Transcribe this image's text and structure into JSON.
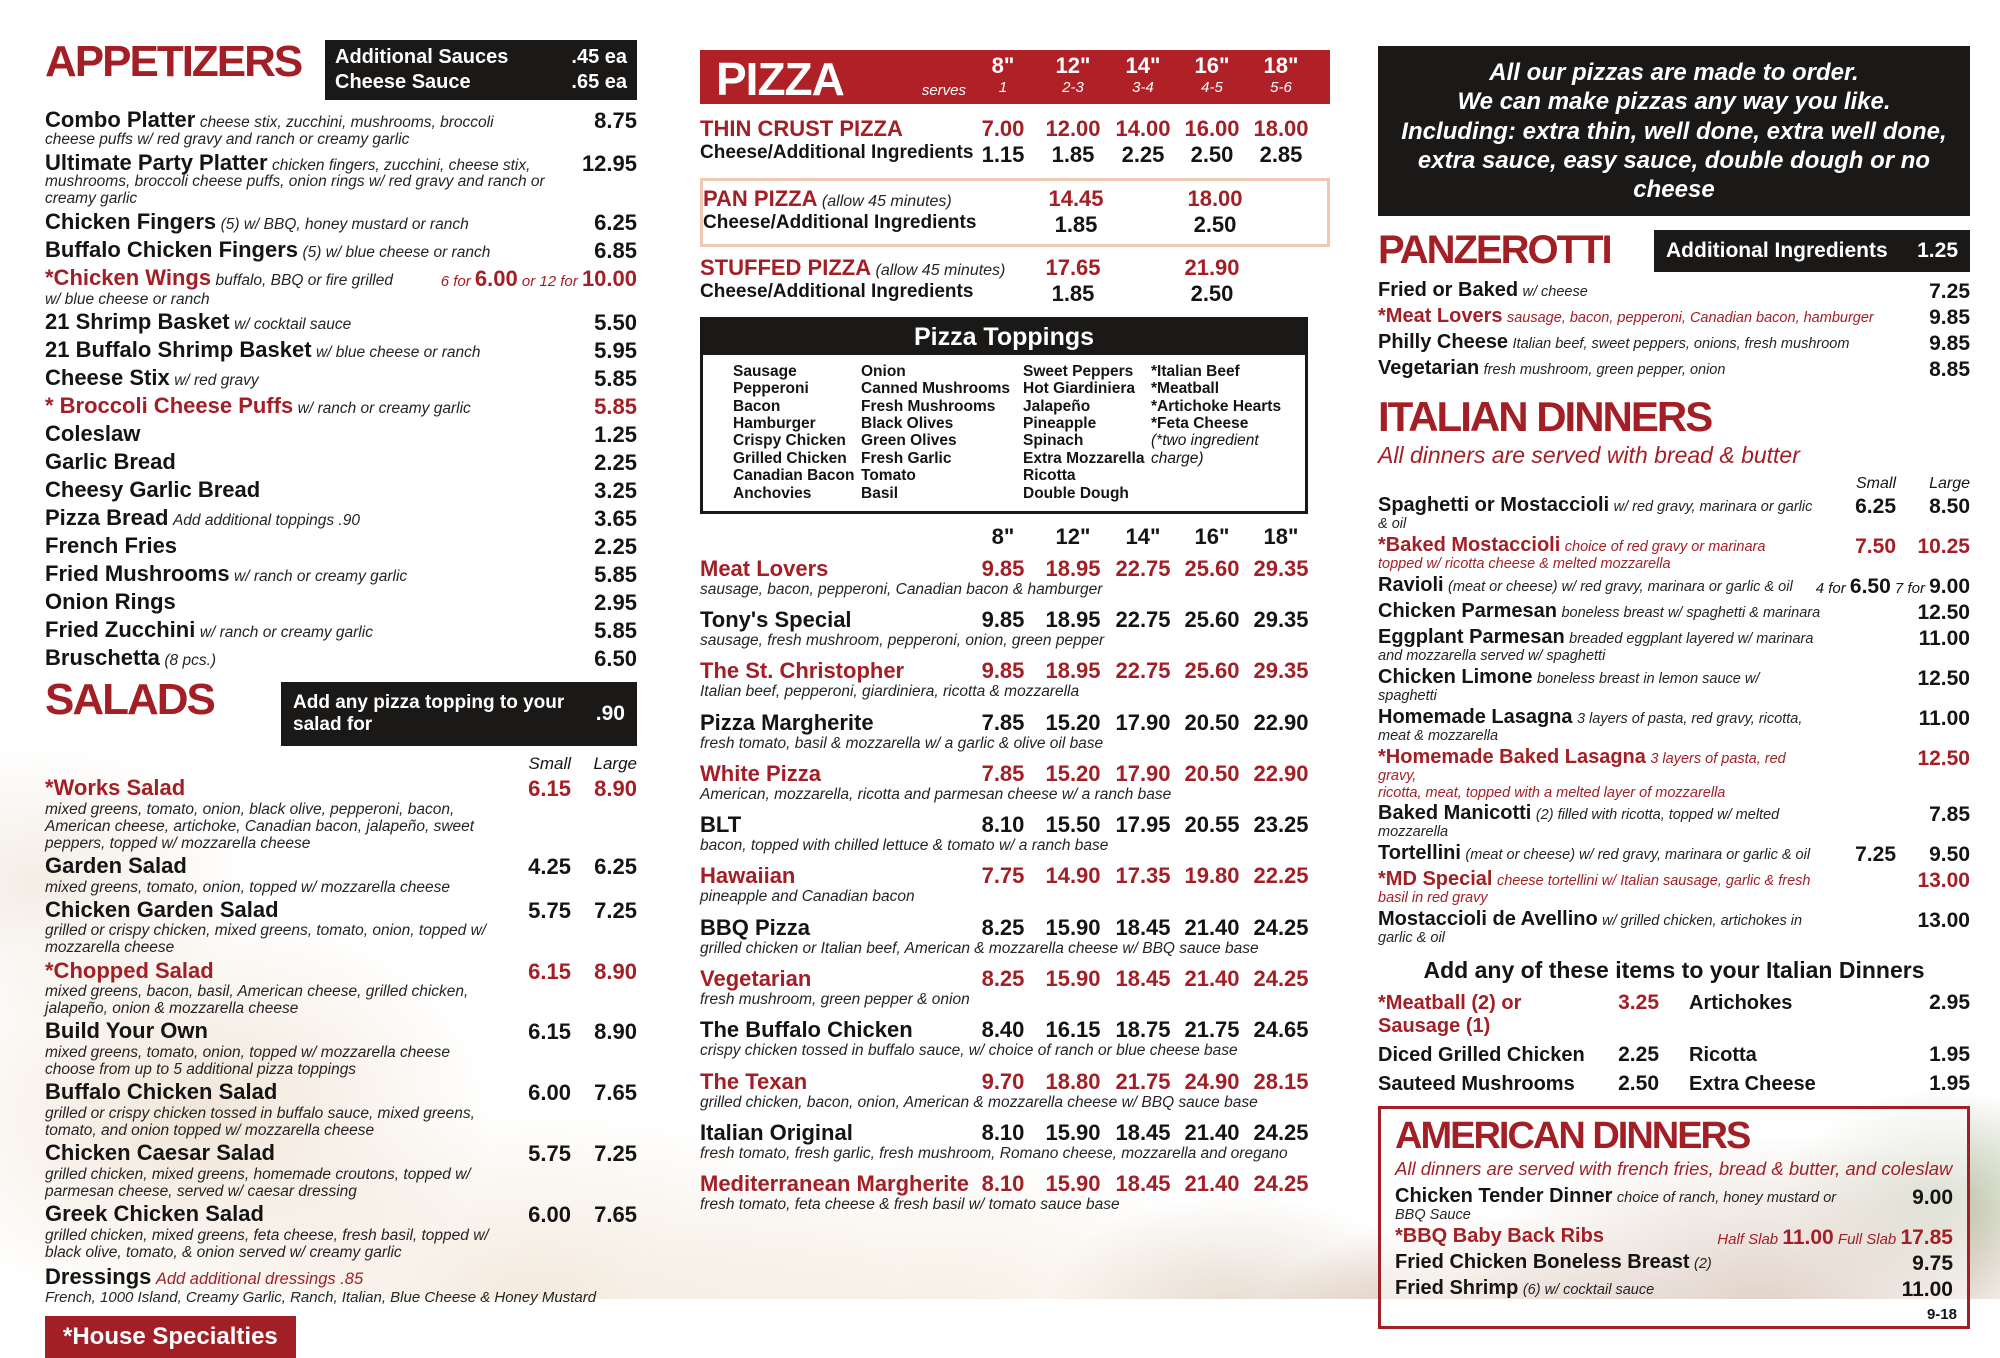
{
  "footnote": "9-18",
  "colors": {
    "red": "#a31f26",
    "banner_red": "#b02127",
    "box_black": "#1b1918",
    "pan_box_border": "#efc8b4"
  },
  "appetizers": {
    "title": "APPETIZERS",
    "side_box": [
      {
        "label": "Additional Sauces",
        "price": ".45 ea"
      },
      {
        "label": "Cheese Sauce",
        "price": ".65 ea"
      }
    ],
    "items": [
      {
        "name": "Combo Platter",
        "desc": "cheese stix, zucchini, mushrooms, broccoli cheese puffs w/ red gravy and ranch or creamy garlic",
        "price": "8.75"
      },
      {
        "name": "Ultimate Party Platter",
        "desc": "chicken fingers, zucchini, cheese stix, mushrooms, broccoli cheese puffs, onion rings w/ red gravy and ranch or creamy garlic",
        "price": "12.95"
      },
      {
        "name": "Chicken Fingers",
        "desc": "(5) w/ BBQ, honey mustard or ranch",
        "price": "6.25"
      },
      {
        "name": "Buffalo Chicken Fingers",
        "desc": "(5) w/ blue cheese or ranch",
        "price": "6.85"
      },
      {
        "name": "*Chicken Wings",
        "red": true,
        "desc": "buffalo, BBQ or fire grilled",
        "desc2": "w/ blue cheese or ranch",
        "price_parts": [
          {
            "t": "6 for ",
            "s": "smr"
          },
          {
            "t": "6.00",
            "s": "bigr"
          },
          {
            "t": " or 12 for ",
            "s": "smr"
          },
          {
            "t": "10.00",
            "s": "bigr"
          }
        ]
      },
      {
        "name": "21 Shrimp Basket",
        "desc": "w/ cocktail sauce",
        "price": "5.50"
      },
      {
        "name": "21 Buffalo Shrimp Basket",
        "desc": "w/ blue cheese or ranch",
        "price": "5.95"
      },
      {
        "name": "Cheese Stix",
        "desc": "w/ red gravy",
        "price": "5.85"
      },
      {
        "name": "* Broccoli Cheese Puffs",
        "red": true,
        "desc": "w/ ranch or creamy garlic",
        "price": "5.85",
        "price_red": true
      },
      {
        "name": "Coleslaw",
        "price": "1.25"
      },
      {
        "name": "Garlic Bread",
        "price": "2.25"
      },
      {
        "name": "Cheesy Garlic Bread",
        "price": "3.25"
      },
      {
        "name": "Pizza Bread",
        "desc": "Add additional toppings .90",
        "price": "3.65"
      },
      {
        "name": "French Fries",
        "price": "2.25"
      },
      {
        "name": "Fried Mushrooms",
        "desc": "w/ ranch or creamy garlic",
        "price": "5.85"
      },
      {
        "name": "Onion Rings",
        "price": "2.95"
      },
      {
        "name": "Fried Zucchini",
        "desc": "w/ ranch or creamy garlic",
        "price": "5.85"
      },
      {
        "name": "Bruschetta",
        "desc": "(8 pcs.)",
        "price": "6.50"
      }
    ]
  },
  "salads": {
    "title": "SALADS",
    "side_box": [
      {
        "label": "Add any pizza topping to your salad for",
        "price": ".90"
      }
    ],
    "col_headers": [
      "Small",
      "Large"
    ],
    "items": [
      {
        "name": "*Works Salad",
        "red": true,
        "desc": "mixed greens, tomato, onion, black olive, pepperoni, bacon, American cheese, artichoke, Canadian bacon, jalapeño, sweet peppers, topped w/ mozzarella cheese",
        "small": "6.15",
        "large": "8.90",
        "price_red": true
      },
      {
        "name": "Garden Salad",
        "desc": "mixed greens, tomato, onion, topped w/ mozzarella cheese",
        "small": "4.25",
        "large": "6.25"
      },
      {
        "name": "Chicken Garden Salad",
        "desc": "grilled or crispy chicken, mixed greens, tomato, onion, topped w/ mozzarella cheese",
        "small": "5.75",
        "large": "7.25"
      },
      {
        "name": "*Chopped Salad",
        "red": true,
        "desc": "mixed greens, bacon, basil, American cheese, grilled chicken, jalapeño, onion & mozzarella cheese",
        "small": "6.15",
        "large": "8.90",
        "price_red": true
      },
      {
        "name": "Build Your Own",
        "desc": "mixed greens, tomato, onion, topped w/ mozzarella cheese choose from up to 5 additional pizza toppings",
        "small": "6.15",
        "large": "8.90"
      },
      {
        "name": "Buffalo Chicken Salad",
        "desc": "grilled or crispy chicken tossed in buffalo sauce, mixed greens, tomato, and onion topped w/ mozzarella cheese",
        "small": "6.00",
        "large": "7.65"
      },
      {
        "name": "Chicken Caesar Salad",
        "desc": "grilled chicken, mixed greens, homemade croutons, topped w/ parmesan cheese, served w/ caesar dressing",
        "small": "5.75",
        "large": "7.25"
      },
      {
        "name": "Greek Chicken Salad",
        "desc": "grilled chicken, mixed greens, feta cheese, fresh basil, topped w/ black olive, tomato, & onion served w/ creamy garlic",
        "small": "6.00",
        "large": "7.65"
      }
    ],
    "dressings": {
      "name": "Dressings",
      "note": "Add additional dressings .85",
      "list": "French, 1000 Island, Creamy Garlic, Ranch, Italian, Blue Cheese & Honey Mustard"
    },
    "house_specialties": "*House Specialties"
  },
  "pizza": {
    "title": "PIZZA",
    "serves_label": "serves",
    "sizes": [
      "8\"",
      "12\"",
      "14\"",
      "16\"",
      "18\""
    ],
    "serves": [
      "1",
      "2-3",
      "3-4",
      "4-5",
      "5-6"
    ],
    "crusts": [
      {
        "name": "THIN CRUST PIZZA",
        "prices": [
          "7.00",
          "12.00",
          "14.00",
          "16.00",
          "18.00"
        ],
        "cheese_label": "Cheese/Additional Ingredients",
        "cheese_prices": [
          "1.15",
          "1.85",
          "2.25",
          "2.50",
          "2.85"
        ]
      },
      {
        "name": "PAN PIZZA",
        "note": "(allow 45 minutes)",
        "boxed": true,
        "prices": [
          "",
          "14.45",
          "",
          "18.00",
          ""
        ],
        "cheese_label": "Cheese/Additional Ingredients",
        "cheese_prices": [
          "",
          "1.85",
          "",
          "2.50",
          ""
        ]
      },
      {
        "name": "STUFFED PIZZA",
        "note": "(allow 45 minutes)",
        "prices": [
          "",
          "17.65",
          "",
          "21.90",
          ""
        ],
        "cheese_label": "Cheese/Additional Ingredients",
        "cheese_prices": [
          "",
          "1.85",
          "",
          "2.50",
          ""
        ]
      }
    ],
    "toppings": {
      "title": "Pizza Toppings",
      "columns": [
        [
          "Sausage",
          "Pepperoni",
          "Bacon",
          "Hamburger",
          "Crispy Chicken",
          "Grilled Chicken",
          "Canadian Bacon",
          "Anchovies"
        ],
        [
          "Onion",
          "Canned Mushrooms",
          "Fresh Mushrooms",
          "Black Olives",
          "Green Olives",
          "Fresh Garlic",
          "Tomato",
          "Basil"
        ],
        [
          "Sweet Peppers",
          "Hot Giardiniera",
          "Jalapeño",
          "Pineapple",
          "Spinach",
          "Extra Mozzarella",
          "Ricotta",
          "Double Dough"
        ],
        [
          "*Italian Beef",
          "*Meatball",
          "*Artichoke Hearts",
          "*Feta Cheese",
          "(*two ingredient charge)"
        ]
      ]
    },
    "specialties": [
      {
        "name": "Meat Lovers",
        "red": true,
        "desc": "sausage, bacon, pepperoni, Canadian bacon & hamburger",
        "prices": [
          "9.85",
          "18.95",
          "22.75",
          "25.60",
          "29.35"
        ]
      },
      {
        "name": "Tony's Special",
        "desc": "sausage, fresh mushroom, pepperoni, onion, green pepper",
        "prices": [
          "9.85",
          "18.95",
          "22.75",
          "25.60",
          "29.35"
        ]
      },
      {
        "name": "The St. Christopher",
        "red": true,
        "desc": "Italian beef, pepperoni, giardiniera, ricotta & mozzarella",
        "prices": [
          "9.85",
          "18.95",
          "22.75",
          "25.60",
          "29.35"
        ]
      },
      {
        "name": "Pizza Margherite",
        "desc": "fresh tomato, basil & mozzarella w/ a garlic & olive oil base",
        "prices": [
          "7.85",
          "15.20",
          "17.90",
          "20.50",
          "22.90"
        ]
      },
      {
        "name": "White Pizza",
        "red": true,
        "desc": "American, mozzarella, ricotta and parmesan cheese w/ a ranch base",
        "prices": [
          "7.85",
          "15.20",
          "17.90",
          "20.50",
          "22.90"
        ]
      },
      {
        "name": "BLT",
        "desc": "bacon, topped with chilled lettuce & tomato w/ a ranch base",
        "prices": [
          "8.10",
          "15.50",
          "17.95",
          "20.55",
          "23.25"
        ]
      },
      {
        "name": "Hawaiian",
        "red": true,
        "desc": "pineapple and Canadian bacon",
        "prices": [
          "7.75",
          "14.90",
          "17.35",
          "19.80",
          "22.25"
        ]
      },
      {
        "name": "BBQ Pizza",
        "desc": "grilled chicken or Italian beef, American & mozzarella cheese w/ BBQ sauce base",
        "prices": [
          "8.25",
          "15.90",
          "18.45",
          "21.40",
          "24.25"
        ]
      },
      {
        "name": "Vegetarian",
        "red": true,
        "desc": "fresh mushroom, green pepper & onion",
        "prices": [
          "8.25",
          "15.90",
          "18.45",
          "21.40",
          "24.25"
        ]
      },
      {
        "name": "The Buffalo Chicken",
        "desc": "crispy chicken tossed in buffalo sauce, w/ choice of ranch or blue cheese base",
        "prices": [
          "8.40",
          "16.15",
          "18.75",
          "21.75",
          "24.65"
        ]
      },
      {
        "name": "The Texan",
        "red": true,
        "desc": "grilled chicken, bacon, onion, American & mozzarella cheese w/ BBQ sauce base",
        "prices": [
          "9.70",
          "18.80",
          "21.75",
          "24.90",
          "28.15"
        ]
      },
      {
        "name": "Italian Original",
        "desc": "fresh tomato, fresh garlic, fresh mushroom, Romano cheese, mozzarella and oregano",
        "prices": [
          "8.10",
          "15.90",
          "18.45",
          "21.40",
          "24.25"
        ]
      },
      {
        "name": "Mediterranean Margherite",
        "red": true,
        "desc": "fresh tomato, feta cheese & fresh basil w/ tomato sauce base",
        "prices": [
          "8.10",
          "15.90",
          "18.45",
          "21.40",
          "24.25"
        ]
      }
    ]
  },
  "pizza_note": {
    "lines": [
      "All our pizzas are made to order.",
      "We can make pizzas any way you like.",
      "Including: extra thin, well done, extra well done,",
      "extra sauce, easy sauce, double dough or no cheese"
    ]
  },
  "panzerotti": {
    "title": "PANZEROTTI",
    "side_box": [
      {
        "label": "Additional Ingredients",
        "price": "1.25"
      }
    ],
    "items": [
      {
        "name": "Fried or Baked",
        "desc": "w/ cheese",
        "price": "7.25"
      },
      {
        "name": "*Meat Lovers",
        "red": true,
        "desc": "sausage, bacon, pepperoni, Canadian bacon, hamburger",
        "desc_red": true,
        "price": "9.85"
      },
      {
        "name": "Philly Cheese",
        "desc": "Italian beef, sweet peppers, onions, fresh mushroom",
        "price": "9.85"
      },
      {
        "name": "Vegetarian",
        "desc": "fresh mushroom, green pepper, onion",
        "price": "8.85"
      }
    ]
  },
  "italian": {
    "title": "ITALIAN DINNERS",
    "subtitle": "All dinners are served with bread & butter",
    "col_headers": [
      "Small",
      "Large"
    ],
    "items": [
      {
        "name": "Spaghetti or Mostaccioli",
        "desc": "w/ red gravy, marinara or garlic & oil",
        "small": "6.25",
        "large": "8.50"
      },
      {
        "name": "*Baked Mostaccioli",
        "red": true,
        "desc": "choice of red gravy or marinara",
        "desc2": "topped w/ ricotta cheese & melted mozzarella",
        "desc_red": true,
        "small": "7.50",
        "large": "10.25",
        "price_red": true
      },
      {
        "name": "Ravioli",
        "desc": "(meat or cheese) w/ red gravy, marinara or garlic & oil",
        "price_parts": [
          {
            "t": "4 for ",
            "s": "sm"
          },
          {
            "t": "6.50",
            "s": "big"
          },
          {
            "t": "  7 for ",
            "s": "sm"
          },
          {
            "t": "9.00",
            "s": "big"
          }
        ]
      },
      {
        "name": "Chicken Parmesan",
        "desc": "boneless breast w/ spaghetti & marinara",
        "large": "12.50"
      },
      {
        "name": "Eggplant Parmesan",
        "desc": "breaded eggplant layered w/ marinara",
        "desc2": "and mozzarella served w/ spaghetti",
        "large": "11.00"
      },
      {
        "name": "Chicken Limone",
        "desc": "boneless breast in lemon sauce w/ spaghetti",
        "large": "12.50"
      },
      {
        "name": "Homemade Lasagna",
        "desc": "3 layers of pasta, red gravy, ricotta,",
        "desc2": "meat & mozzarella",
        "large": "11.00"
      },
      {
        "name": "*Homemade Baked Lasagna",
        "red": true,
        "desc": "3 layers of pasta, red gravy,",
        "desc2": "ricotta, meat, topped with a melted layer of mozzarella",
        "desc_red": true,
        "large": "12.50",
        "price_red": true
      },
      {
        "name": "Baked Manicotti",
        "desc": "(2) filled with ricotta, topped w/ melted mozzarella",
        "large": "7.85"
      },
      {
        "name": "Tortellini",
        "desc": "(meat or cheese) w/ red gravy, marinara or garlic & oil",
        "small": "7.25",
        "large": "9.50"
      },
      {
        "name": "*MD Special",
        "red": true,
        "desc": "cheese tortellini w/ Italian sausage, garlic & fresh basil in red gravy",
        "desc_red": true,
        "large": "13.00",
        "price_red": true
      },
      {
        "name": "Mostaccioli de Avellino",
        "desc": "w/ grilled chicken, artichokes in garlic & oil",
        "large": "13.00"
      }
    ],
    "addons_title": "Add any of these items to your Italian Dinners",
    "addons_rows": [
      [
        {
          "name": "*Meatball (2) or Sausage (1)",
          "red": true,
          "price": "3.25",
          "price_red": true
        },
        {
          "name": "Artichokes",
          "price": "2.95"
        }
      ],
      [
        {
          "name": "Diced Grilled Chicken",
          "price": "2.25"
        },
        {
          "name": "Ricotta",
          "price": "1.95"
        }
      ],
      [
        {
          "name": "Sauteed Mushrooms",
          "price": "2.50"
        },
        {
          "name": "Extra Cheese",
          "price": "1.95"
        }
      ]
    ]
  },
  "american": {
    "title": "AMERICAN DINNERS",
    "subtitle": "All dinners are served with french fries, bread & butter, and coleslaw",
    "items": [
      {
        "name": "Chicken Tender Dinner",
        "desc": "choice of ranch, honey mustard or BBQ Sauce",
        "price": "9.00"
      },
      {
        "name": "*BBQ Baby Back Ribs",
        "red": true,
        "price_parts": [
          {
            "t": "Half Slab ",
            "s": "smr"
          },
          {
            "t": "11.00",
            "s": "bigr"
          },
          {
            "t": "  Full Slab ",
            "s": "smr"
          },
          {
            "t": "17.85",
            "s": "bigr"
          }
        ]
      },
      {
        "name": "Fried Chicken Boneless Breast",
        "desc": "(2)",
        "price": "9.75"
      },
      {
        "name": "Fried Shrimp",
        "desc": "(6) w/ cocktail sauce",
        "price": "11.00"
      }
    ]
  }
}
